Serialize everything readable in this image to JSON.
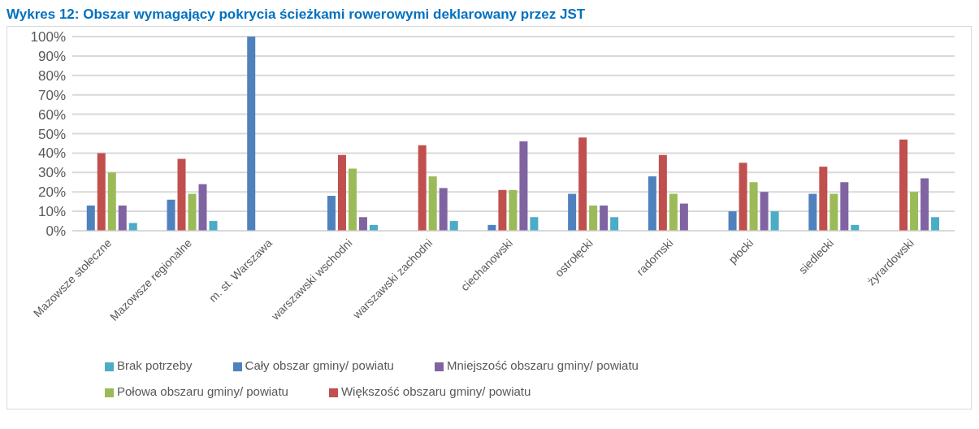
{
  "chart_data": {
    "type": "bar",
    "title": "Wykres 12: Obszar wymagający pokrycia ścieżkami rowerowymi deklarowany przez JST",
    "categories": [
      "Mazowsze stołeczne",
      "Mazowsze regionalne",
      "m. st. Warszawa",
      "warszawski wschodni",
      "warszawski zachodni",
      "ciechanowski",
      "ostrołęcki",
      "radomski",
      "płocki",
      "siedlecki",
      "żyrardowski"
    ],
    "series": [
      {
        "name": "Cały obszar gminy/ powiatu",
        "color": "#4f81bd",
        "values": [
          13,
          16,
          100,
          18,
          0,
          3,
          19,
          28,
          10,
          19,
          0
        ]
      },
      {
        "name": "Większość obszaru gminy/ powiatu",
        "color": "#c0504d",
        "values": [
          40,
          37,
          0,
          39,
          44,
          21,
          48,
          39,
          35,
          33,
          47
        ]
      },
      {
        "name": "Połowa obszaru gminy/ powiatu",
        "color": "#9bbb59",
        "values": [
          30,
          19,
          0,
          32,
          28,
          21,
          13,
          19,
          25,
          19,
          20
        ]
      },
      {
        "name": "Mniejszość obszaru gminy/ powiatu",
        "color": "#8064a2",
        "values": [
          13,
          24,
          0,
          7,
          22,
          46,
          13,
          14,
          20,
          25,
          27
        ]
      },
      {
        "name": "Brak potrzeby",
        "color": "#4bacc6",
        "values": [
          4,
          5,
          0,
          3,
          5,
          7,
          7,
          0,
          10,
          3,
          7
        ]
      }
    ],
    "ylim": [
      0,
      100
    ],
    "yticks": [
      {
        "value": 0,
        "label": "0%"
      },
      {
        "value": 10,
        "label": "10%"
      },
      {
        "value": 20,
        "label": "20%"
      },
      {
        "value": 30,
        "label": "30%"
      },
      {
        "value": 40,
        "label": "40%"
      },
      {
        "value": 50,
        "label": "50%"
      },
      {
        "value": 60,
        "label": "60%"
      },
      {
        "value": 70,
        "label": "70%"
      },
      {
        "value": 80,
        "label": "80%"
      },
      {
        "value": 90,
        "label": "90%"
      },
      {
        "value": 100,
        "label": "100%"
      }
    ],
    "grid": "y",
    "legend": "bottom"
  }
}
